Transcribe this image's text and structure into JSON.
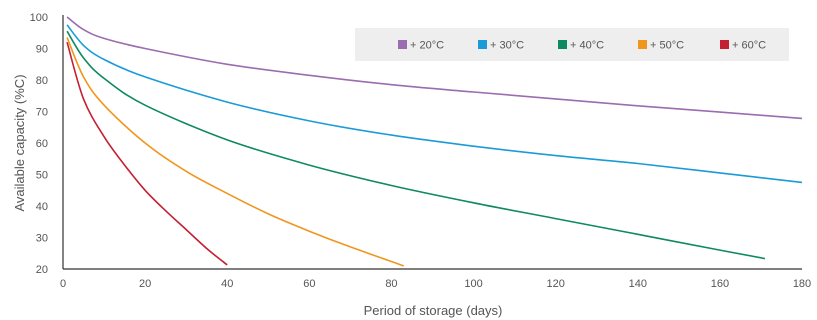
{
  "chart_data": {
    "type": "line",
    "title": "",
    "xlabel": "Period of storage (days)",
    "ylabel": "Available capacity (%C)",
    "xlim": [
      0,
      180
    ],
    "ylim": [
      20,
      100
    ],
    "xticks": [
      0,
      20,
      40,
      60,
      80,
      100,
      120,
      140,
      160,
      180
    ],
    "yticks": [
      20,
      30,
      40,
      50,
      60,
      70,
      80,
      90,
      100
    ],
    "grid": false,
    "legend_position": "top-right",
    "series": [
      {
        "name": "+ 20°C",
        "color": "#9b6cb0",
        "points": [
          [
            1,
            100
          ],
          [
            5,
            96
          ],
          [
            10,
            93.2
          ],
          [
            20,
            90
          ],
          [
            40,
            85
          ],
          [
            60,
            81.5
          ],
          [
            80,
            78.5
          ],
          [
            100,
            76.2
          ],
          [
            120,
            74
          ],
          [
            140,
            71.8
          ],
          [
            160,
            69.8
          ],
          [
            180,
            67.8
          ]
        ]
      },
      {
        "name": "+ 30°C",
        "color": "#1a9bd7",
        "points": [
          [
            1,
            97.5
          ],
          [
            5,
            91
          ],
          [
            10,
            86.5
          ],
          [
            20,
            81
          ],
          [
            40,
            73
          ],
          [
            60,
            67
          ],
          [
            80,
            62.5
          ],
          [
            100,
            59
          ],
          [
            120,
            56
          ],
          [
            140,
            53.5
          ],
          [
            160,
            50.5
          ],
          [
            180,
            47.5
          ]
        ]
      },
      {
        "name": "+ 40°C",
        "color": "#0e8a5f",
        "points": [
          [
            1,
            95.5
          ],
          [
            5,
            87
          ],
          [
            10,
            80.5
          ],
          [
            20,
            72
          ],
          [
            40,
            61
          ],
          [
            60,
            53
          ],
          [
            80,
            46.5
          ],
          [
            100,
            41
          ],
          [
            120,
            36
          ],
          [
            140,
            31
          ],
          [
            160,
            26
          ],
          [
            171,
            23.3
          ]
        ]
      },
      {
        "name": "+ 50°C",
        "color": "#f0961e",
        "points": [
          [
            1,
            93.5
          ],
          [
            5,
            81
          ],
          [
            10,
            72
          ],
          [
            20,
            60
          ],
          [
            30,
            51
          ],
          [
            40,
            44
          ],
          [
            50,
            37.5
          ],
          [
            60,
            32
          ],
          [
            70,
            27
          ],
          [
            83,
            21
          ]
        ]
      },
      {
        "name": "+ 60°C",
        "color": "#c42033",
        "points": [
          [
            1,
            92
          ],
          [
            5,
            74
          ],
          [
            10,
            62
          ],
          [
            15,
            53
          ],
          [
            20,
            45
          ],
          [
            25,
            38.5
          ],
          [
            30,
            32.5
          ],
          [
            35,
            26.5
          ],
          [
            40,
            21.3
          ]
        ]
      }
    ]
  }
}
